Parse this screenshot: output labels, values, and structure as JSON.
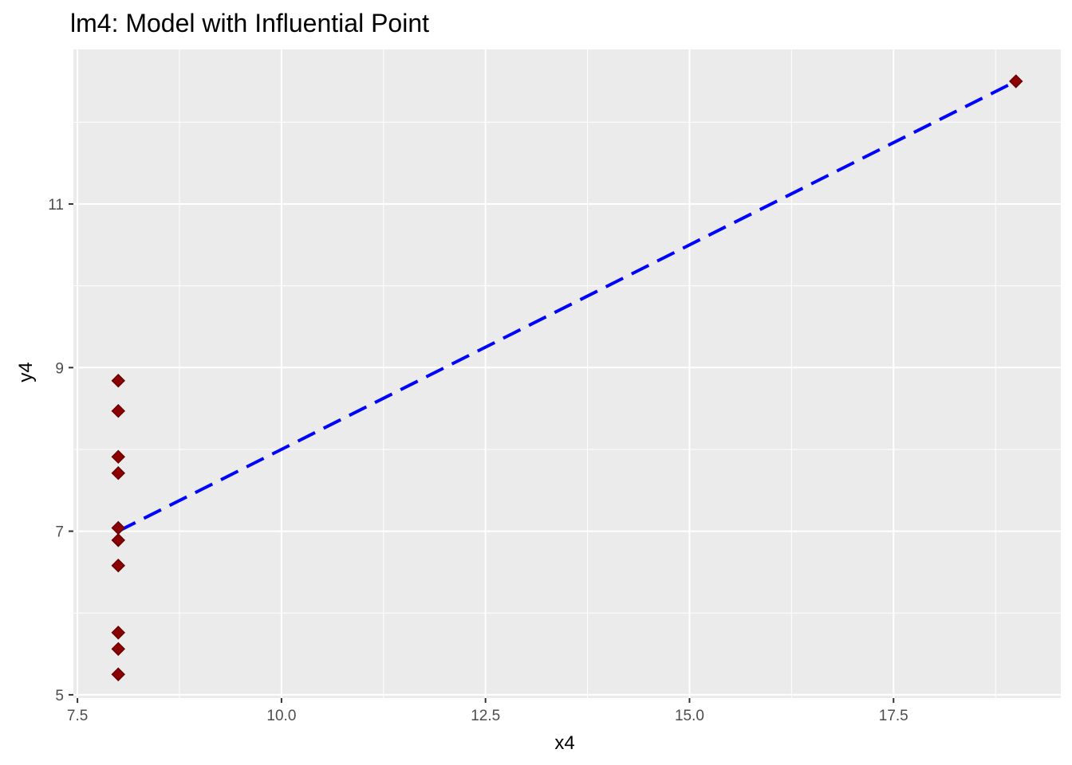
{
  "chart_data": {
    "type": "scatter",
    "title": "lm4: Model with Influential Point",
    "xlabel": "x4",
    "ylabel": "y4",
    "xlim": [
      7.45,
      19.55
    ],
    "ylim": [
      4.96,
      12.89
    ],
    "x_ticks": [
      7.5,
      10.0,
      12.5,
      15.0,
      17.5
    ],
    "x_tick_labels": [
      "7.5",
      "10.0",
      "12.5",
      "15.0",
      "17.5"
    ],
    "y_ticks": [
      5,
      7,
      9,
      11
    ],
    "y_tick_labels": [
      "5",
      "7",
      "9",
      "11"
    ],
    "grid": true,
    "panel_background": "#ebebeb",
    "grid_color": "#ffffff",
    "series": [
      {
        "type": "scatter",
        "marker": "diamond",
        "color": "#8b0000",
        "x": [
          8,
          8,
          8,
          8,
          8,
          8,
          8,
          8,
          8,
          8,
          19
        ],
        "y": [
          6.58,
          5.76,
          7.71,
          8.84,
          8.47,
          7.04,
          5.25,
          5.56,
          7.91,
          6.89,
          12.5
        ]
      },
      {
        "type": "line",
        "style": "dashed",
        "color": "#0000ff",
        "x": [
          8,
          19
        ],
        "y": [
          7.0,
          12.5
        ]
      }
    ]
  }
}
